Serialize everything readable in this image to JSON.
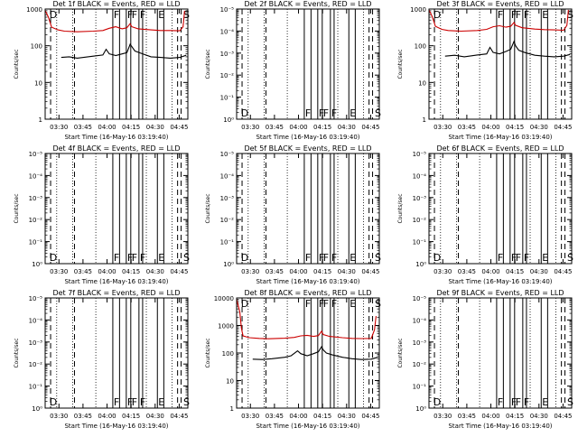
{
  "chart_data": [
    {
      "type": "line",
      "title": "Det 1f  BLACK = Events, RED = LLD",
      "ylabel": "Counts/sec",
      "xlabel": "Start Time (16-May-16 03:19:40)",
      "x_tick_labels": [
        "03:30",
        "03:45",
        "04:00",
        "04:15",
        "04:30",
        "04:45"
      ],
      "y_tick_labels": [
        "1",
        "10",
        "100",
        "1000"
      ],
      "ylim": [
        1,
        1000
      ],
      "xlim_minutes": [
        0,
        89
      ],
      "y_scale": "log",
      "markers": [
        {
          "label": "D",
          "t": 2.1
        },
        {
          "label": "F",
          "t": 42.2
        },
        {
          "label": "F",
          "t": 50.6
        },
        {
          "label": "F",
          "t": 53.4
        },
        {
          "label": "F",
          "t": 58.5
        },
        {
          "label": "E",
          "t": 70.0
        },
        {
          "label": "S",
          "t": 85.6
        }
      ],
      "series": [
        {
          "color": "#000000",
          "points": [
            [
              10,
              48
            ],
            [
              15,
              50
            ],
            [
              20,
              46
            ],
            [
              30,
              52
            ],
            [
              36,
              56
            ],
            [
              38,
              80
            ],
            [
              40,
              60
            ],
            [
              44,
              54
            ],
            [
              48,
              60
            ],
            [
              51,
              65
            ],
            [
              53,
              110
            ],
            [
              54,
              95
            ],
            [
              56,
              72
            ],
            [
              60,
              62
            ],
            [
              66,
              50
            ],
            [
              72,
              48
            ],
            [
              78,
              46
            ],
            [
              84,
              48
            ],
            [
              88,
              55
            ]
          ]
        },
        {
          "color": "#cc0000",
          "points": [
            [
              0,
              920
            ],
            [
              2,
              600
            ],
            [
              4,
              320
            ],
            [
              8,
              270
            ],
            [
              12,
              250
            ],
            [
              20,
              240
            ],
            [
              30,
              250
            ],
            [
              36,
              260
            ],
            [
              40,
              300
            ],
            [
              44,
              330
            ],
            [
              48,
              290
            ],
            [
              51,
              310
            ],
            [
              53,
              400
            ],
            [
              54,
              330
            ],
            [
              58,
              290
            ],
            [
              66,
              270
            ],
            [
              72,
              260
            ],
            [
              78,
              260
            ],
            [
              84,
              255
            ],
            [
              86,
              330
            ],
            [
              87,
              900
            ]
          ]
        }
      ]
    },
    {
      "type": "line",
      "title": "Det 2f  BLACK = Events, RED = LLD",
      "ylabel": "Counts/sec",
      "xlabel": "Start Time (16-May-16 03:19:40)",
      "x_tick_labels": [
        "03:30",
        "03:45",
        "04:00",
        "04:15",
        "04:30",
        "04:45"
      ],
      "y_tick_labels": [
        "10⁰",
        "10⁻¹",
        "10⁻²",
        "10⁻³",
        "10⁻⁴",
        "10⁻⁵"
      ],
      "y_scale": "log",
      "markers": [
        {
          "label": "D",
          "t": 2.1
        },
        {
          "label": "F",
          "t": 42.2
        },
        {
          "label": "F",
          "t": 50.6
        },
        {
          "label": "F",
          "t": 53.4
        },
        {
          "label": "F",
          "t": 58.5
        },
        {
          "label": "E",
          "t": 70.0
        },
        {
          "label": "S",
          "t": 85.6
        }
      ],
      "series": []
    },
    {
      "type": "line",
      "title": "Det 3f  BLACK = Events, RED = LLD",
      "ylabel": "Counts/sec",
      "xlabel": "Start Time (16-May-16 03:19:40)",
      "x_tick_labels": [
        "03:30",
        "03:45",
        "04:00",
        "04:15",
        "04:30",
        "04:45"
      ],
      "y_tick_labels": [
        "1",
        "10",
        "100",
        "1000"
      ],
      "ylim": [
        1,
        1000
      ],
      "y_scale": "log",
      "markers": [
        {
          "label": "D",
          "t": 2.1
        },
        {
          "label": "F",
          "t": 42.2
        },
        {
          "label": "F",
          "t": 50.6
        },
        {
          "label": "F",
          "t": 53.4
        },
        {
          "label": "F",
          "t": 58.5
        },
        {
          "label": "E",
          "t": 70.0
        },
        {
          "label": "S",
          "t": 85.6
        }
      ],
      "series": [
        {
          "color": "#000000",
          "points": [
            [
              10,
              52
            ],
            [
              16,
              55
            ],
            [
              22,
              50
            ],
            [
              30,
              56
            ],
            [
              36,
              60
            ],
            [
              38,
              90
            ],
            [
              40,
              66
            ],
            [
              44,
              60
            ],
            [
              48,
              70
            ],
            [
              51,
              80
            ],
            [
              53,
              130
            ],
            [
              54,
              100
            ],
            [
              56,
              75
            ],
            [
              60,
              65
            ],
            [
              66,
              55
            ],
            [
              72,
              52
            ],
            [
              78,
              50
            ],
            [
              84,
              52
            ],
            [
              88,
              58
            ]
          ]
        },
        {
          "color": "#cc0000",
          "points": [
            [
              0,
              950
            ],
            [
              2,
              620
            ],
            [
              4,
              340
            ],
            [
              8,
              280
            ],
            [
              12,
              260
            ],
            [
              20,
              250
            ],
            [
              30,
              260
            ],
            [
              36,
              280
            ],
            [
              40,
              330
            ],
            [
              44,
              350
            ],
            [
              48,
              320
            ],
            [
              51,
              340
            ],
            [
              53,
              430
            ],
            [
              54,
              360
            ],
            [
              58,
              310
            ],
            [
              66,
              285
            ],
            [
              72,
              275
            ],
            [
              78,
              270
            ],
            [
              84,
              265
            ],
            [
              86,
              360
            ],
            [
              87,
              950
            ]
          ]
        }
      ]
    },
    {
      "type": "line",
      "title": "Det 4f  BLACK = Events, RED = LLD",
      "ylabel": "Counts/sec",
      "xlabel": "Start Time (16-May-16 03:19:40)",
      "x_tick_labels": [
        "03:30",
        "03:45",
        "04:00",
        "04:15",
        "04:30",
        "04:45"
      ],
      "y_tick_labels": [
        "10⁰",
        "10⁻¹",
        "10⁻²",
        "10⁻³",
        "10⁻⁴",
        "10⁻⁵"
      ],
      "y_scale": "log",
      "markers": [
        {
          "label": "D",
          "t": 2.1
        },
        {
          "label": "F",
          "t": 42.2
        },
        {
          "label": "F",
          "t": 50.6
        },
        {
          "label": "F",
          "t": 53.4
        },
        {
          "label": "F",
          "t": 58.5
        },
        {
          "label": "E",
          "t": 70.0
        },
        {
          "label": "S",
          "t": 85.6
        }
      ],
      "series": []
    },
    {
      "type": "line",
      "title": "Det 5f  BLACK = Events, RED = LLD",
      "ylabel": "Counts/sec",
      "xlabel": "Start Time (16-May-16 03:19:40)",
      "x_tick_labels": [
        "03:30",
        "03:45",
        "04:00",
        "04:15",
        "04:30",
        "04:45"
      ],
      "y_tick_labels": [
        "10⁰",
        "10⁻¹",
        "10⁻²",
        "10⁻³",
        "10⁻⁴",
        "10⁻⁵"
      ],
      "y_scale": "log",
      "markers": [
        {
          "label": "D",
          "t": 2.1
        },
        {
          "label": "F",
          "t": 42.2
        },
        {
          "label": "F",
          "t": 50.6
        },
        {
          "label": "F",
          "t": 53.4
        },
        {
          "label": "F",
          "t": 58.5
        },
        {
          "label": "E",
          "t": 70.0
        },
        {
          "label": "S",
          "t": 85.6
        }
      ],
      "series": []
    },
    {
      "type": "line",
      "title": "Det 6f  BLACK = Events, RED = LLD",
      "ylabel": "Counts/sec",
      "xlabel": "Start Time (16-May-16 03:19:40)",
      "x_tick_labels": [
        "03:30",
        "03:45",
        "04:00",
        "04:15",
        "04:30",
        "04:45"
      ],
      "y_tick_labels": [
        "10⁰",
        "10⁻¹",
        "10⁻²",
        "10⁻³",
        "10⁻⁴",
        "10⁻⁵"
      ],
      "y_scale": "log",
      "markers": [
        {
          "label": "D",
          "t": 2.1
        },
        {
          "label": "F",
          "t": 42.2
        },
        {
          "label": "F",
          "t": 50.6
        },
        {
          "label": "F",
          "t": 53.4
        },
        {
          "label": "F",
          "t": 58.5
        },
        {
          "label": "E",
          "t": 70.0
        },
        {
          "label": "S",
          "t": 85.6
        }
      ],
      "series": []
    },
    {
      "type": "line",
      "title": "Det 7f  BLACK = Events, RED = LLD",
      "ylabel": "Counts/sec",
      "xlabel": "Start Time (16-May-16 03:19:40)",
      "x_tick_labels": [
        "03:30",
        "03:45",
        "04:00",
        "04:15",
        "04:30",
        "04:45"
      ],
      "y_tick_labels": [
        "10⁰",
        "10⁻¹",
        "10⁻²",
        "10⁻³",
        "10⁻⁴",
        "10⁻⁵"
      ],
      "y_scale": "log",
      "markers": [
        {
          "label": "D",
          "t": 2.1
        },
        {
          "label": "F",
          "t": 42.2
        },
        {
          "label": "F",
          "t": 50.6
        },
        {
          "label": "F",
          "t": 53.4
        },
        {
          "label": "F",
          "t": 58.5
        },
        {
          "label": "E",
          "t": 70.0
        },
        {
          "label": "S",
          "t": 85.6
        }
      ],
      "series": []
    },
    {
      "type": "line",
      "title": "Det 8f  BLACK = Events, RED = LLD",
      "ylabel": "Counts/sec",
      "xlabel": "Start Time (16-May-16 03:19:40)",
      "x_tick_labels": [
        "03:30",
        "03:45",
        "04:00",
        "04:15",
        "04:30",
        "04:45"
      ],
      "y_tick_labels": [
        "1",
        "10",
        "100",
        "1000",
        "10000"
      ],
      "ylim": [
        1,
        10000
      ],
      "y_scale": "log",
      "markers": [
        {
          "label": "D",
          "t": 2.1
        },
        {
          "label": "F",
          "t": 42.2
        },
        {
          "label": "F",
          "t": 50.6
        },
        {
          "label": "F",
          "t": 53.4
        },
        {
          "label": "F",
          "t": 58.5
        },
        {
          "label": "E",
          "t": 70.0
        },
        {
          "label": "S",
          "t": 85.6
        }
      ],
      "series": [
        {
          "color": "#000000",
          "points": [
            [
              10,
              60
            ],
            [
              16,
              58
            ],
            [
              22,
              62
            ],
            [
              30,
              70
            ],
            [
              34,
              80
            ],
            [
              38,
              120
            ],
            [
              40,
              95
            ],
            [
              44,
              80
            ],
            [
              48,
              95
            ],
            [
              51,
              110
            ],
            [
              53,
              170
            ],
            [
              54,
              130
            ],
            [
              56,
              100
            ],
            [
              60,
              85
            ],
            [
              66,
              70
            ],
            [
              72,
              62
            ],
            [
              78,
              58
            ],
            [
              84,
              60
            ],
            [
              88,
              70
            ]
          ]
        },
        {
          "color": "#cc0000",
          "points": [
            [
              0,
              9000
            ],
            [
              2,
              3000
            ],
            [
              3,
              800
            ],
            [
              4,
              420
            ],
            [
              8,
              360
            ],
            [
              14,
              340
            ],
            [
              20,
              330
            ],
            [
              30,
              345
            ],
            [
              36,
              370
            ],
            [
              40,
              420
            ],
            [
              44,
              440
            ],
            [
              48,
              400
            ],
            [
              51,
              430
            ],
            [
              53,
              620
            ],
            [
              54,
              470
            ],
            [
              58,
              400
            ],
            [
              66,
              360
            ],
            [
              72,
              340
            ],
            [
              78,
              335
            ],
            [
              84,
              340
            ],
            [
              86,
              700
            ],
            [
              87,
              2200
            ]
          ]
        }
      ]
    },
    {
      "type": "line",
      "title": "Det 9f  BLACK = Events, RED = LLD",
      "ylabel": "Counts/sec",
      "xlabel": "Start Time (16-May-16 03:19:40)",
      "x_tick_labels": [
        "03:30",
        "03:45",
        "04:00",
        "04:15",
        "04:30",
        "04:45"
      ],
      "y_tick_labels": [
        "10⁰",
        "10⁻¹",
        "10⁻²",
        "10⁻³",
        "10⁻⁴",
        "10⁻⁵"
      ],
      "y_scale": "log",
      "markers": [
        {
          "label": "D",
          "t": 2.1
        },
        {
          "label": "F",
          "t": 42.2
        },
        {
          "label": "F",
          "t": 50.6
        },
        {
          "label": "F",
          "t": 53.4
        },
        {
          "label": "F",
          "t": 58.5
        },
        {
          "label": "E",
          "t": 70.0
        },
        {
          "label": "S",
          "t": 85.6
        }
      ],
      "series": []
    }
  ]
}
